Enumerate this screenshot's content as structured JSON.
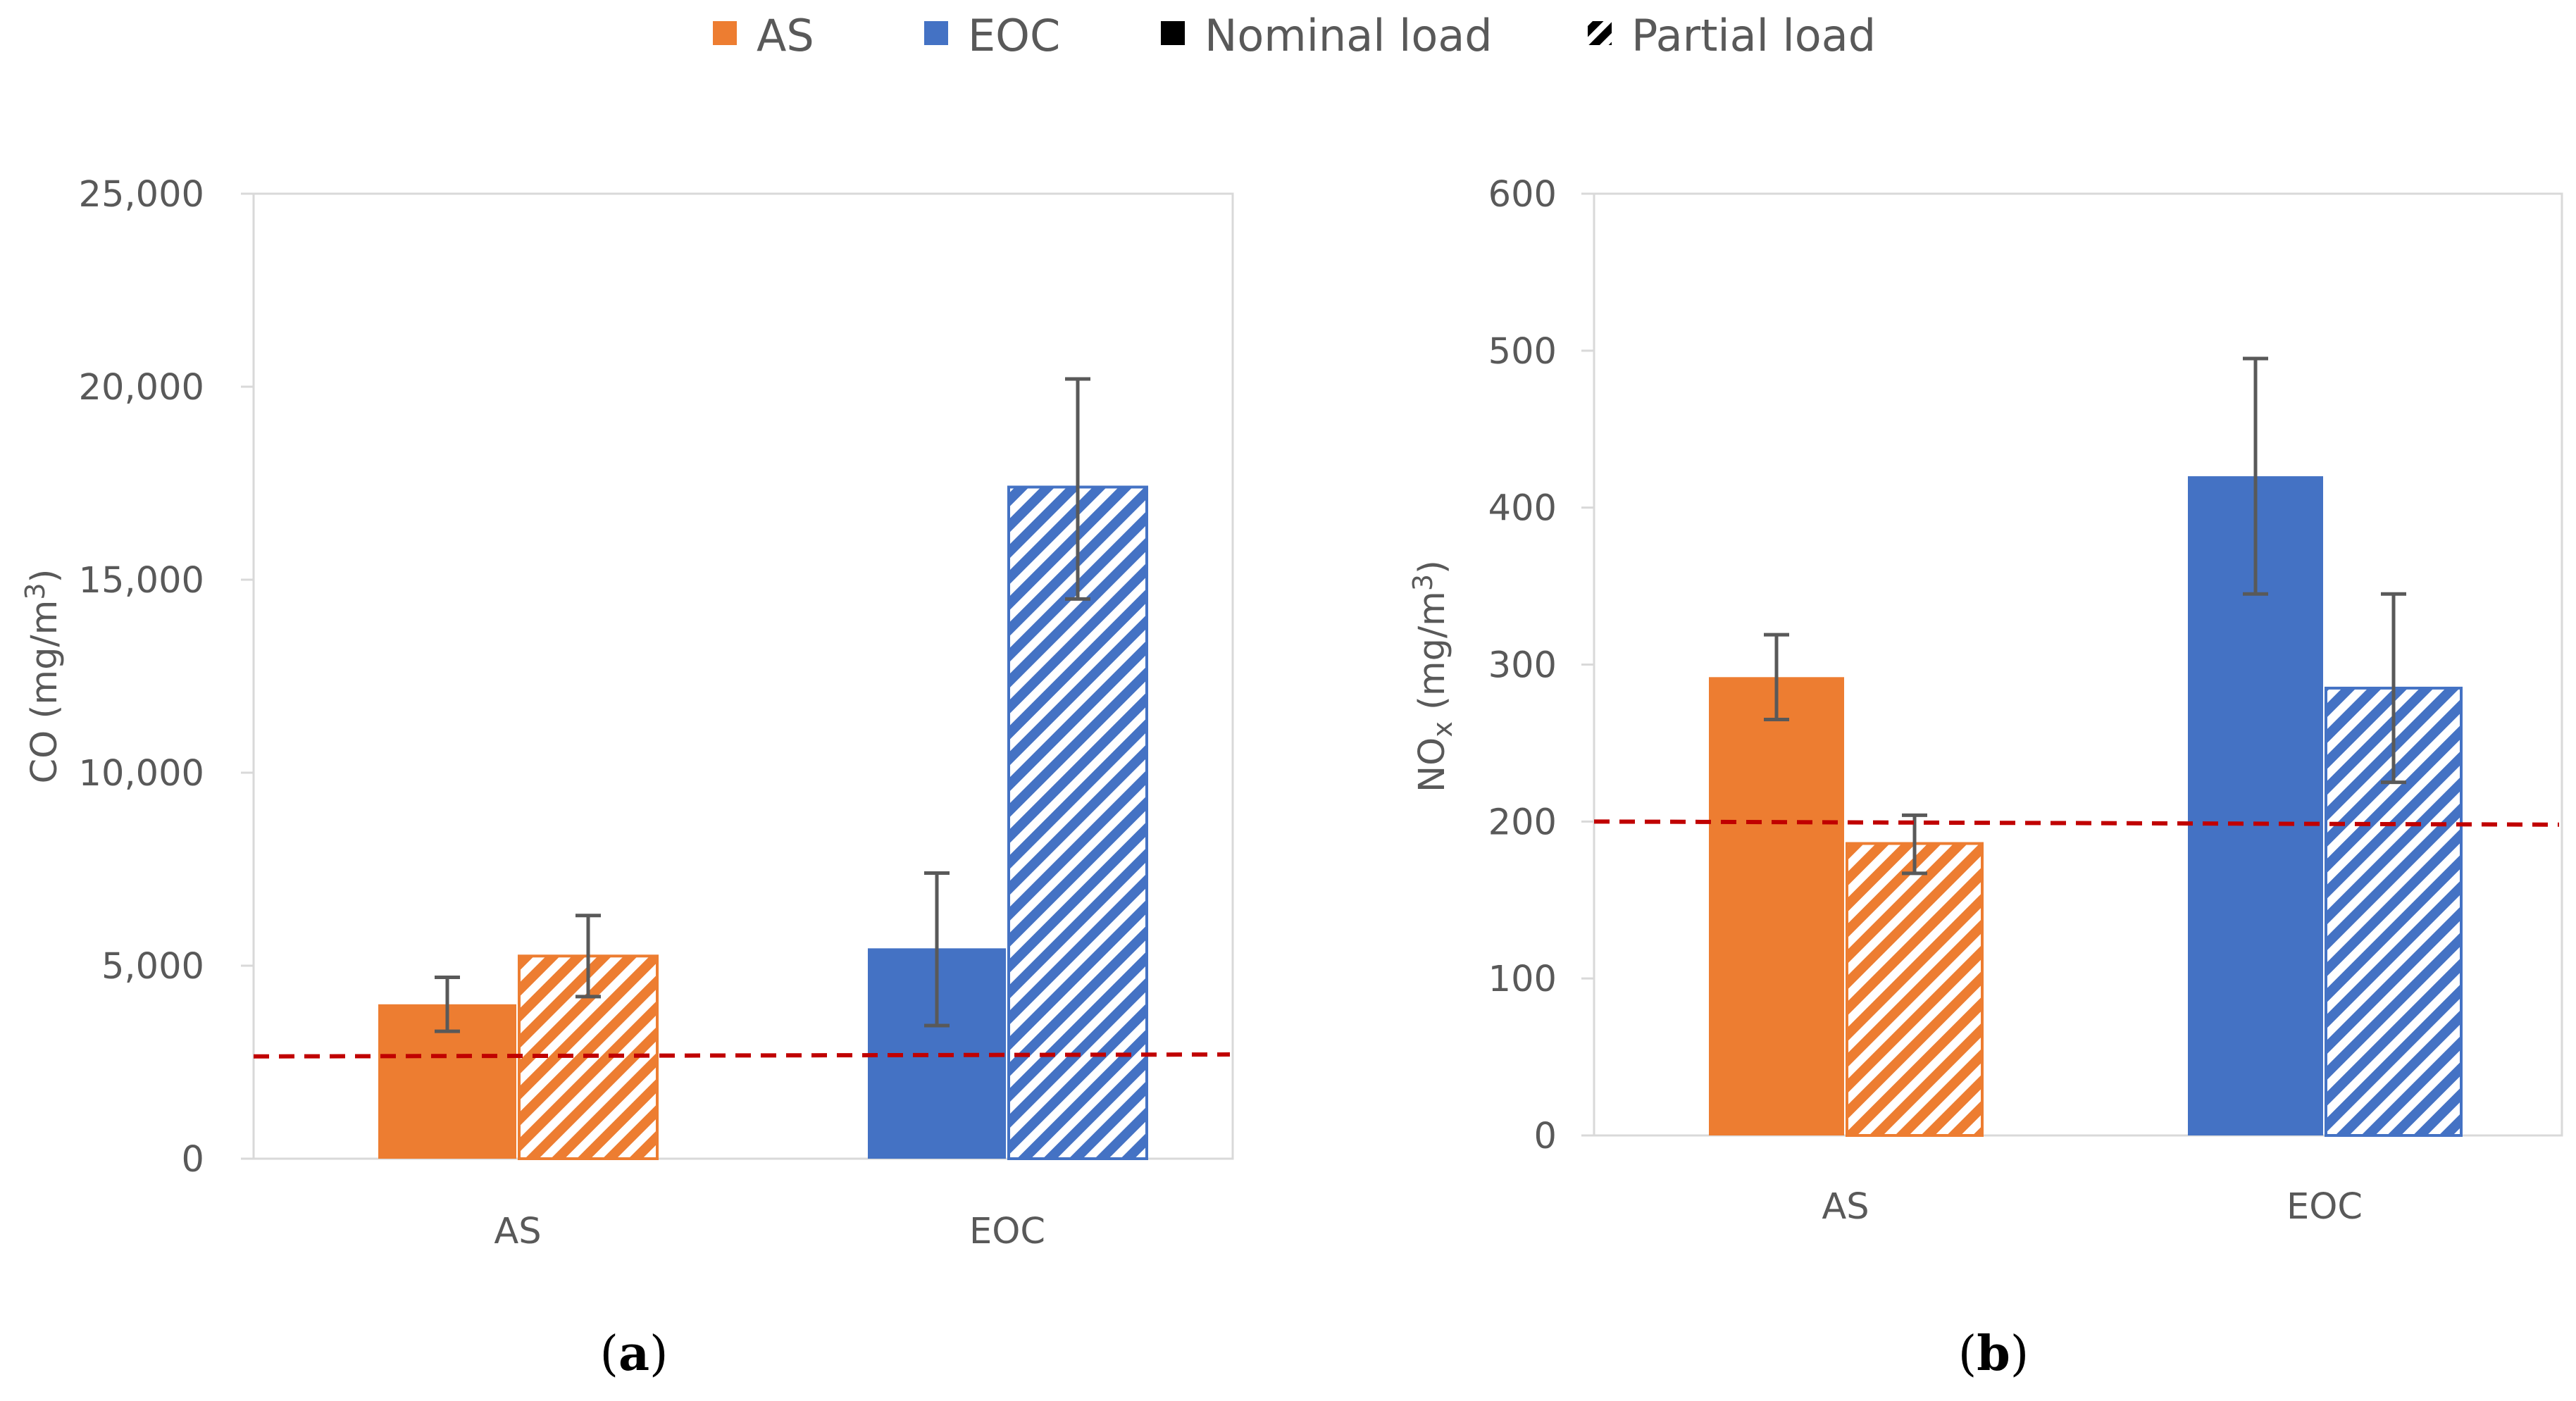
{
  "legend": {
    "items": [
      {
        "label": "AS",
        "kind": "solid",
        "color": "#ED7D31"
      },
      {
        "label": "EOC",
        "kind": "solid",
        "color": "#4472C4"
      },
      {
        "label": "Nominal load",
        "kind": "solid",
        "color": "#000000"
      },
      {
        "label": "Partial load",
        "kind": "hatch",
        "color": "#000000"
      }
    ]
  },
  "colors": {
    "as": "#ED7D31",
    "eoc": "#4472C4",
    "error_bar": "#595959",
    "limit_line": "#C00000",
    "plot_border": "#D9D9D9",
    "axis": "#D9D9D9",
    "text": "#595959"
  },
  "chart_data": [
    {
      "type": "bar",
      "panel": "(a)",
      "panel_letter": "a",
      "ylabel": "CO (mg/m3)",
      "ylabel_parts": {
        "main": "CO (mg/m",
        "sup": "3",
        "end": ")"
      },
      "ylim": [
        0,
        25000
      ],
      "yticks": [
        0,
        5000,
        10000,
        15000,
        20000,
        25000
      ],
      "ytick_labels": [
        "0",
        "5,000",
        "10,000",
        "15,000",
        "20,000",
        "25,000"
      ],
      "categories": [
        "AS",
        "EOC"
      ],
      "series": [
        {
          "name": "Nominal load",
          "pattern": "solid",
          "values": [
            4000,
            5450
          ],
          "err_low": [
            3300,
            3450
          ],
          "err_high": [
            4700,
            7400
          ]
        },
        {
          "name": "Partial load",
          "pattern": "hatch",
          "values": [
            5250,
            17400
          ],
          "err_low": [
            4200,
            14500
          ],
          "err_high": [
            6300,
            20200
          ]
        }
      ],
      "limit_line": {
        "y_start": 2650,
        "y_end": 2700
      }
    },
    {
      "type": "bar",
      "panel": "(b)",
      "panel_letter": "b",
      "ylabel": "NOx (mg/m3)",
      "ylabel_parts": {
        "main": "NO",
        "sub": "x",
        "rest": " (mg/m",
        "sup": "3",
        "end": ")"
      },
      "ylim": [
        0,
        600
      ],
      "yticks": [
        0,
        100,
        200,
        300,
        400,
        500,
        600
      ],
      "ytick_labels": [
        "0",
        "100",
        "200",
        "300",
        "400",
        "500",
        "600"
      ],
      "categories": [
        "AS",
        "EOC"
      ],
      "series": [
        {
          "name": "Nominal load",
          "pattern": "solid",
          "values": [
            292,
            420
          ],
          "err_low": [
            265,
            345
          ],
          "err_high": [
            319,
            495
          ]
        },
        {
          "name": "Partial load",
          "pattern": "hatch",
          "values": [
            186,
            285
          ],
          "err_low": [
            167,
            225
          ],
          "err_high": [
            204,
            345
          ]
        }
      ],
      "limit_line": {
        "y_start": 200,
        "y_end": 198
      }
    }
  ]
}
